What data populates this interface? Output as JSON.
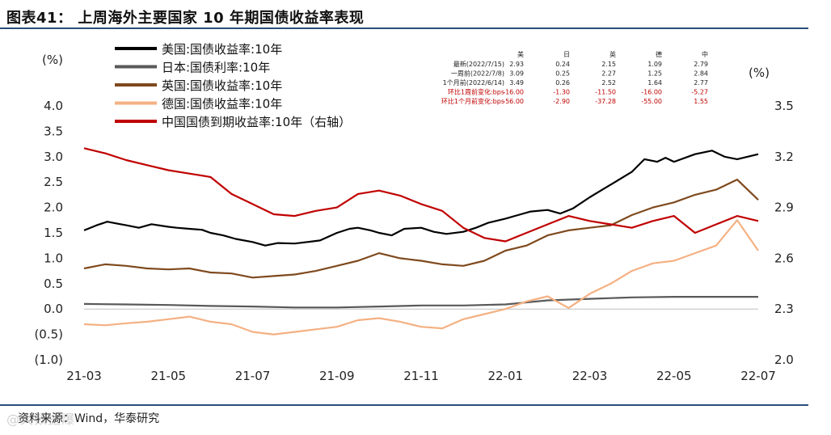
{
  "figure": {
    "title": "图表41：  上周海外主要国家 10 年期国债收益率表现",
    "source": "资料来源：Wind，华泰研究",
    "watermark": "@大数据爆"
  },
  "chart_data": {
    "type": "line",
    "left_axis": {
      "unit": "(%)",
      "ylim": [
        -1.0,
        4.0
      ],
      "ticks": [
        "4.0",
        "3.5",
        "3.0",
        "2.5",
        "2.0",
        "1.5",
        "1.0",
        "0.5",
        "0.0",
        "(0.5)",
        "(1.0)"
      ]
    },
    "right_axis": {
      "unit": "(%)",
      "ylim": [
        2.0,
        3.5
      ],
      "ticks": [
        "3.5",
        "3.2",
        "2.9",
        "2.6",
        "2.3",
        "2.0"
      ]
    },
    "x_ticks": [
      "21-03",
      "21-05",
      "21-07",
      "21-09",
      "21-11",
      "22-01",
      "22-03",
      "22-05",
      "22-07"
    ],
    "grid": false,
    "legend_position": "top-left",
    "series": [
      {
        "name": "美国:国债收益率:10年",
        "color": "#000000",
        "axis": "left",
        "x": [
          0,
          0.3,
          0.55,
          0.8,
          1,
          1.3,
          1.6,
          2,
          2.2,
          2.5,
          2.8,
          3,
          3.3,
          3.6,
          4,
          4.3,
          4.6,
          5,
          5.3,
          5.6,
          6,
          6.3,
          6.5,
          6.8,
          7,
          7.3,
          7.6,
          8,
          8.3,
          8.6,
          9,
          9.3,
          9.6,
          10,
          10.3,
          10.6,
          11,
          11.3,
          11.6,
          12,
          12.3,
          12.6,
          13,
          13.3,
          13.6,
          13.8,
          14,
          14.5,
          14.9,
          15.2,
          15.5,
          16
        ],
        "values": [
          1.55,
          1.65,
          1.72,
          1.68,
          1.65,
          1.6,
          1.67,
          1.62,
          1.6,
          1.58,
          1.56,
          1.5,
          1.45,
          1.38,
          1.32,
          1.25,
          1.3,
          1.29,
          1.32,
          1.35,
          1.5,
          1.58,
          1.6,
          1.55,
          1.5,
          1.45,
          1.58,
          1.6,
          1.52,
          1.48,
          1.52,
          1.6,
          1.7,
          1.78,
          1.85,
          1.92,
          1.95,
          1.88,
          1.98,
          2.2,
          2.35,
          2.5,
          2.7,
          2.95,
          2.9,
          2.98,
          2.9,
          3.05,
          3.12,
          3.0,
          2.95,
          3.05
        ]
      },
      {
        "name": "日本:国债利率:10年",
        "color": "#595959",
        "axis": "left",
        "x": [
          0,
          1,
          2,
          3,
          4,
          5,
          6,
          7,
          8,
          9,
          10,
          11,
          12,
          13,
          14,
          15,
          16
        ],
        "values": [
          0.1,
          0.09,
          0.08,
          0.06,
          0.05,
          0.03,
          0.03,
          0.05,
          0.07,
          0.07,
          0.09,
          0.17,
          0.2,
          0.23,
          0.24,
          0.24,
          0.24
        ]
      },
      {
        "name": "英国:国债收益率:10年",
        "color": "#7f4a1e",
        "axis": "left",
        "x": [
          0,
          0.5,
          1,
          1.5,
          2,
          2.5,
          3,
          3.5,
          4,
          4.5,
          5,
          5.5,
          6,
          6.5,
          7,
          7.5,
          8,
          8.5,
          9,
          9.5,
          10,
          10.5,
          11,
          11.5,
          12,
          12.5,
          13,
          13.5,
          14,
          14.5,
          15,
          15.5,
          16
        ],
        "values": [
          0.8,
          0.88,
          0.85,
          0.8,
          0.78,
          0.8,
          0.72,
          0.7,
          0.62,
          0.65,
          0.68,
          0.75,
          0.85,
          0.95,
          1.1,
          1.0,
          0.95,
          0.88,
          0.85,
          0.95,
          1.15,
          1.25,
          1.45,
          1.55,
          1.6,
          1.65,
          1.85,
          2.0,
          2.1,
          2.25,
          2.35,
          2.55,
          2.15
        ]
      },
      {
        "name": "德国:国债收益率:10年",
        "color": "#f4b183",
        "axis": "left",
        "x": [
          0,
          0.5,
          1,
          1.5,
          2,
          2.5,
          3,
          3.5,
          4,
          4.5,
          5,
          5.5,
          6,
          6.5,
          7,
          7.5,
          8,
          8.5,
          9,
          9.5,
          10,
          10.5,
          11,
          11.5,
          12,
          12.5,
          13,
          13.5,
          14,
          14.5,
          15,
          15.5,
          16
        ],
        "values": [
          -0.3,
          -0.32,
          -0.28,
          -0.25,
          -0.2,
          -0.15,
          -0.25,
          -0.3,
          -0.45,
          -0.5,
          -0.45,
          -0.4,
          -0.35,
          -0.22,
          -0.18,
          -0.25,
          -0.35,
          -0.38,
          -0.2,
          -0.1,
          0.0,
          0.15,
          0.25,
          0.02,
          0.3,
          0.5,
          0.75,
          0.9,
          0.95,
          1.1,
          1.25,
          1.75,
          1.15
        ]
      },
      {
        "name": "中国国债到期收益率:10年（右轴）",
        "color": "#c00000",
        "axis": "right",
        "x": [
          0,
          0.5,
          1,
          1.5,
          2,
          2.5,
          3,
          3.5,
          4,
          4.5,
          5,
          5.5,
          6,
          6.5,
          7,
          7.5,
          8,
          8.5,
          9,
          9.5,
          10,
          10.5,
          11,
          11.5,
          12,
          12.5,
          13,
          13.5,
          14,
          14.5,
          15,
          15.5,
          16
        ],
        "values": [
          3.25,
          3.22,
          3.18,
          3.15,
          3.12,
          3.1,
          3.08,
          2.98,
          2.92,
          2.86,
          2.85,
          2.88,
          2.9,
          2.98,
          3.0,
          2.97,
          2.92,
          2.88,
          2.78,
          2.72,
          2.7,
          2.75,
          2.8,
          2.85,
          2.82,
          2.8,
          2.78,
          2.82,
          2.85,
          2.75,
          2.8,
          2.85,
          2.82
        ]
      }
    ]
  },
  "data_table": {
    "headers": [
      "",
      "美",
      "日",
      "英",
      "德",
      "中"
    ],
    "rows": [
      {
        "label": "最新(2022/7/15)",
        "values": [
          "2.93",
          "0.24",
          "2.15",
          "1.09",
          "2.79"
        ],
        "color": "#222222"
      },
      {
        "label": "一周前(2022/7/8)",
        "values": [
          "3.09",
          "0.25",
          "2.27",
          "1.25",
          "2.84"
        ],
        "color": "#222222"
      },
      {
        "label": "1个月前(2022/6/14)",
        "values": [
          "3.49",
          "0.26",
          "2.52",
          "1.64",
          "2.77"
        ],
        "color": "#222222"
      },
      {
        "label": "环比1周前变化:bps",
        "values": [
          "-16.00",
          "-1.30",
          "-11.50",
          "-16.00",
          "-5.27"
        ],
        "color": "#c00000"
      },
      {
        "label": "环比1个月前变化:bps",
        "values": [
          "-56.00",
          "-2.90",
          "-37.28",
          "-55.00",
          "1.55"
        ],
        "color": "#c00000"
      }
    ]
  }
}
